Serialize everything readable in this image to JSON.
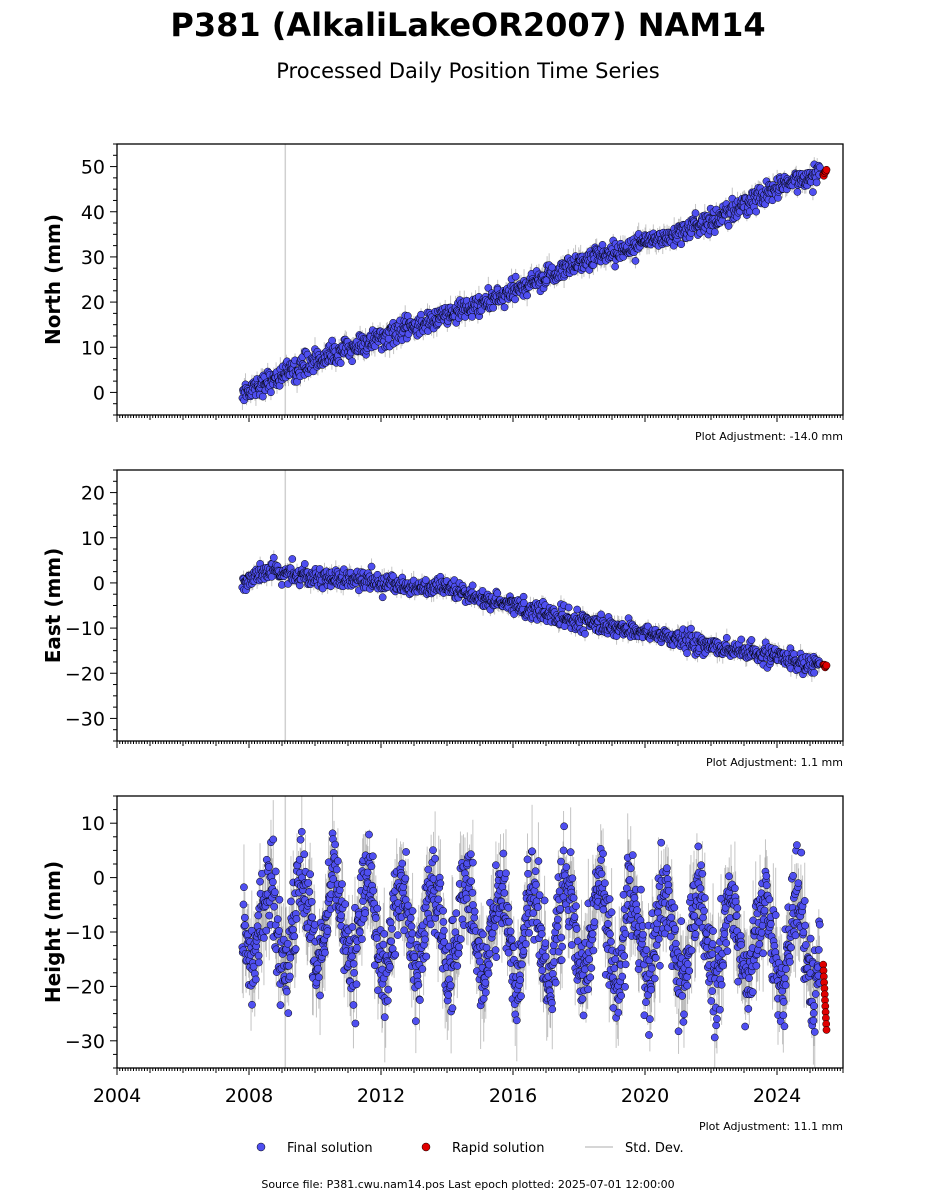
{
  "header": {
    "title": "P381 (AlkaliLakeOR2007) NAM14",
    "subtitle": "Processed Daily Position Time Series"
  },
  "colors": {
    "final": "#4f4ff0",
    "rapid": "#e00000",
    "stddev": "#c8c8c8",
    "marker_edge": "#000000",
    "vline": "#d0d0d0"
  },
  "chart_data": [
    {
      "type": "scatter",
      "ylabel": "North (mm)",
      "xlim": [
        2004,
        2026
      ],
      "ylim": [
        -5,
        55
      ],
      "yticks": [
        0,
        10,
        20,
        30,
        40,
        50
      ],
      "adjustment": "Plot Adjustment: -14.0 mm",
      "vline_x": 2009.1,
      "series": [
        {
          "name": "Final solution",
          "x": [
            2007.8,
            2010,
            2012,
            2014,
            2016,
            2018,
            2020,
            2022,
            2024,
            2025.3
          ],
          "y": [
            0,
            7,
            12,
            17,
            22,
            29,
            33,
            38,
            45,
            49
          ]
        },
        {
          "name": "Rapid solution",
          "x": [
            2025.4,
            2025.5
          ],
          "y": [
            48.5,
            49
          ]
        }
      ],
      "noise_mm": 1.2
    },
    {
      "type": "scatter",
      "ylabel": "East (mm)",
      "xlim": [
        2004,
        2026
      ],
      "ylim": [
        -35,
        25
      ],
      "yticks": [
        -30,
        -20,
        -10,
        0,
        10,
        20
      ],
      "adjustment": "Plot Adjustment: 1.1 mm",
      "vline_x": 2009.1,
      "series": [
        {
          "name": "Final solution",
          "x": [
            2007.8,
            2008.5,
            2010,
            2012,
            2014,
            2016,
            2018,
            2020,
            2022,
            2024,
            2025.3
          ],
          "y": [
            0,
            2.5,
            1.5,
            0,
            -1.5,
            -5,
            -8.5,
            -11,
            -14,
            -16.5,
            -18
          ]
        },
        {
          "name": "Rapid solution",
          "x": [
            2025.4,
            2025.5
          ],
          "y": [
            -18,
            -18.5
          ]
        }
      ],
      "noise_mm": 1.0
    },
    {
      "type": "scatter",
      "ylabel": "Height (mm)",
      "xlim": [
        2004,
        2026
      ],
      "ylim": [
        -35,
        15
      ],
      "yticks": [
        -30,
        -20,
        -10,
        0,
        10
      ],
      "xticks": [
        2004,
        2008,
        2012,
        2016,
        2020,
        2024
      ],
      "adjustment": "Plot Adjustment: 11.1 mm",
      "vline_x": 2009.1,
      "series": [
        {
          "name": "Final solution",
          "x": [
            2007.8,
            2025.3
          ],
          "y": [
            -8,
            -12
          ],
          "seasonal_amplitude": 8
        },
        {
          "name": "Rapid solution",
          "x": [
            2025.4,
            2025.5
          ],
          "y": [
            -16,
            -28
          ]
        }
      ],
      "noise_mm": 4.0
    }
  ],
  "legend": {
    "final": "Final solution",
    "rapid": "Rapid solution",
    "stddev": "Std. Dev."
  },
  "footer": {
    "source": "Source file: P381.cwu.nam14.pos  Last epoch plotted: 2025-07-01 12:00:00"
  }
}
